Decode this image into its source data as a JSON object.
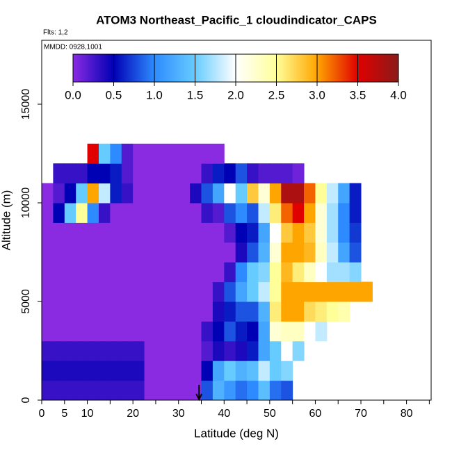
{
  "chart_data": {
    "type": "heatmap",
    "title": "ATOM3 Northeast_Pacific_1 cloudindicator_CAPS",
    "subtitle": "Flts: 1,2",
    "annotation": "MMDD: 0928,1001",
    "xlabel": "Latitude (deg N)",
    "ylabel": "Altitude (m)",
    "xlim": [
      0,
      85.4
    ],
    "ylim": [
      0,
      18240
    ],
    "xticks": [
      0,
      5,
      10,
      20,
      30,
      40,
      50,
      60,
      70,
      80
    ],
    "xticks_minor": [
      15,
      25,
      35,
      45,
      55,
      65,
      75,
      85
    ],
    "yticks": [
      0,
      5000,
      10000,
      15000
    ],
    "marker_x": 34.5,
    "xbins": [
      0,
      2.5,
      5,
      7.5,
      10,
      12.5,
      15,
      17.5,
      20,
      22.5,
      25,
      27.5,
      30,
      32.5,
      35,
      37.5,
      40,
      42.5,
      45,
      47.5,
      50,
      52.5,
      55,
      57.5,
      60,
      62.5,
      65,
      67.5,
      70,
      72.5
    ],
    "ybins": [
      0,
      1000,
      2000,
      3000,
      4000,
      5000,
      6000,
      7000,
      8000,
      9000,
      10000,
      11000,
      12000,
      13000
    ],
    "values": [
      [
        0.3,
        0.3,
        0.3,
        0.3,
        0.3,
        0.3,
        0.3,
        0.3,
        0.3,
        0,
        0,
        0,
        0,
        0,
        0.8,
        1.3,
        1.1,
        0.9,
        1.0,
        1.4,
        0.9,
        0.8,
        null,
        null,
        null,
        null,
        null,
        null,
        null
      ],
      [
        0.4,
        0.4,
        0.4,
        0.4,
        0.4,
        0.4,
        0.4,
        0.4,
        0.4,
        0,
        0,
        0,
        0,
        0,
        0.5,
        1.2,
        1.5,
        1.3,
        1.4,
        1.8,
        1.5,
        1.6,
        null,
        null,
        null,
        null,
        null,
        null,
        null
      ],
      [
        0.3,
        0.3,
        0.3,
        0.3,
        0.3,
        0.3,
        0.3,
        0.3,
        0.3,
        0,
        0,
        0,
        0,
        0,
        0.2,
        0.4,
        0.3,
        0.4,
        0.6,
        1.2,
        1.5,
        2.0,
        1.6,
        null,
        null,
        null,
        null,
        null,
        null
      ],
      [
        0,
        0,
        0,
        0,
        0,
        0,
        0,
        0,
        0,
        0,
        0,
        0,
        0,
        0,
        0.3,
        0.5,
        0.8,
        0.6,
        0.5,
        1.2,
        2.2,
        2.3,
        2.3,
        2.0,
        1.8,
        null,
        null,
        null,
        null
      ],
      [
        0,
        0,
        0,
        0,
        0,
        0,
        0,
        0,
        0,
        0,
        0,
        0,
        0,
        0,
        0,
        0.4,
        0.6,
        0.8,
        0.8,
        1.3,
        2.6,
        3.0,
        3.0,
        2.7,
        2.6,
        2.5,
        2.4,
        null,
        null
      ],
      [
        0,
        0,
        0,
        0,
        0,
        0,
        0,
        0,
        0,
        0,
        0,
        0,
        0,
        0,
        0,
        0.3,
        0.8,
        1.2,
        1.5,
        1.8,
        2.5,
        3.0,
        3.0,
        3.0,
        3.0,
        3.0,
        3.0,
        3.0,
        3.0
      ],
      [
        0,
        0,
        0,
        0,
        0,
        0,
        0,
        0,
        0,
        0,
        0,
        0,
        0,
        0,
        0,
        0,
        0.3,
        1.0,
        1.5,
        1.6,
        2.5,
        2.9,
        2.6,
        2.3,
        2.0,
        1.7,
        1.7,
        1.6,
        null
      ],
      [
        0,
        0,
        0,
        0,
        0,
        0,
        0,
        0,
        0,
        0,
        0,
        0,
        0,
        0,
        0,
        0,
        0,
        0.4,
        0.8,
        1.3,
        2.2,
        3.0,
        3.0,
        2.9,
        2.3,
        1.8,
        1.2,
        0.8,
        null
      ],
      [
        0,
        0,
        0,
        0,
        0,
        0,
        0,
        0,
        0,
        0,
        0,
        0,
        0,
        0,
        0,
        0,
        0.2,
        0.5,
        0.6,
        1.2,
        2.0,
        2.8,
        3.0,
        2.8,
        2.2,
        1.7,
        1.0,
        0.7,
        null
      ],
      [
        0,
        0.5,
        1.5,
        2.5,
        1.0,
        0.3,
        0,
        0,
        0,
        0,
        0,
        0,
        0,
        0,
        0.3,
        0.2,
        0.8,
        1.0,
        0.8,
        1.8,
        2.6,
        3.2,
        3.5,
        3.0,
        2.2,
        1.7,
        1.0,
        0.6,
        null
      ],
      [
        0,
        0.2,
        0.5,
        1.5,
        3.0,
        1.8,
        0.6,
        0.3,
        0,
        0,
        0,
        0,
        0,
        0.4,
        0.8,
        1.2,
        2.0,
        1.5,
        2.8,
        2.2,
        3.0,
        3.8,
        3.8,
        3.2,
        2.5,
        1.8,
        1.2,
        0.6,
        null
      ],
      [
        null,
        0.3,
        0.3,
        0.3,
        0.5,
        0.5,
        0.6,
        0.2,
        0,
        0,
        0,
        0,
        0,
        0,
        0.3,
        0.6,
        0.5,
        0.8,
        0.3,
        0.2,
        0.2,
        0.2,
        0.1,
        null,
        null,
        null,
        null,
        null,
        null
      ],
      [
        null,
        null,
        null,
        null,
        3.5,
        1.5,
        1.0,
        0.2,
        0,
        0,
        0,
        0,
        0,
        0,
        0,
        0,
        null,
        null,
        null,
        null,
        null,
        null,
        null,
        null,
        null,
        null,
        null,
        null,
        null
      ]
    ],
    "colorbar": {
      "ticks": [
        {
          "value": 0,
          "label": "0.0"
        },
        {
          "value": 0.5,
          "label": "0.5"
        },
        {
          "value": 1,
          "label": "1.0"
        },
        {
          "value": 1.5,
          "label": "1.5"
        },
        {
          "value": 2,
          "label": "2.0"
        },
        {
          "value": 2.5,
          "label": "2.5"
        },
        {
          "value": 3,
          "label": "3.0"
        },
        {
          "value": 3.5,
          "label": "3.5"
        },
        {
          "value": 4,
          "label": "4.0"
        }
      ],
      "colors": [
        "#8a2be2",
        "#0000b4",
        "#2e8bff",
        "#66ccff",
        "#ffffff",
        "#ffff99",
        "#ffa500",
        "#e00000",
        "#8b1a1a"
      ]
    }
  }
}
